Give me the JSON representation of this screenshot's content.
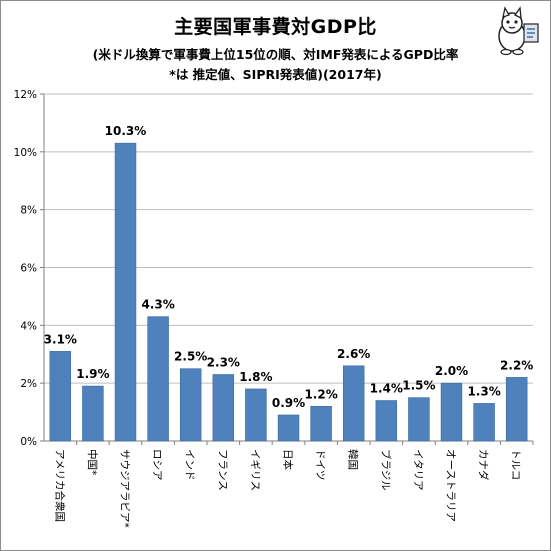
{
  "header": {
    "title": "主要国軍事費対GDP比",
    "subtitle_line1": "(米ドル換算で軍事費上位15位の順、対IMF発表によるGPD比率",
    "subtitle_line2": "*は 推定値、SIPRI発表値)(2017年)"
  },
  "colors": {
    "bar": "#4f81bd",
    "bar_edge": "#3d6a9f",
    "grid": "#bfbfbf",
    "axis": "#808080"
  },
  "chart_data": {
    "type": "bar",
    "title": "主要国軍事費対GDP比",
    "categories": [
      "アメリカ合衆国",
      "中国*",
      "サウジアラビア*",
      "ロシア",
      "インド",
      "フランス",
      "イギリス",
      "日本",
      "ドイツ",
      "韓国",
      "ブラジル",
      "イタリア",
      "オーストラリア",
      "カナダ",
      "トルコ"
    ],
    "values": [
      3.1,
      1.9,
      10.3,
      4.3,
      2.5,
      2.3,
      1.8,
      0.9,
      1.2,
      2.6,
      1.4,
      1.5,
      2.0,
      1.3,
      2.2
    ],
    "data_labels": [
      "3.1%",
      "1.9%",
      "10.3%",
      "4.3%",
      "2.5%",
      "2.3%",
      "1.8%",
      "0.9%",
      "1.2%",
      "2.6%",
      "1.4%",
      "1.5%",
      "2.0%",
      "1.3%",
      "2.2%"
    ],
    "ylim": [
      0,
      12
    ],
    "yticks": [
      0,
      2,
      4,
      6,
      8,
      10,
      12
    ],
    "ytick_labels": [
      "0%",
      "2%",
      "4%",
      "6%",
      "8%",
      "10%",
      "12%"
    ],
    "grid": true,
    "legend": "none"
  }
}
